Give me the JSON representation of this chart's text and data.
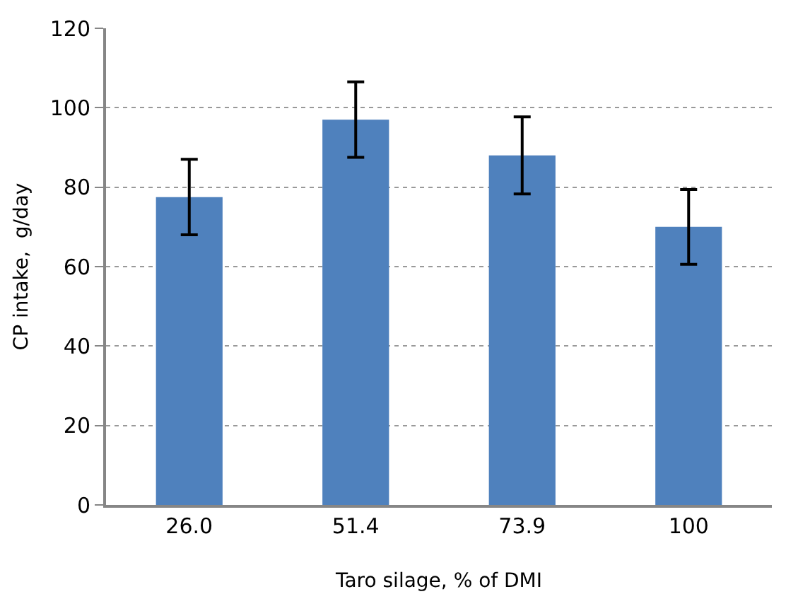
{
  "chart_data": {
    "type": "bar",
    "xlabel": "Taro silage, % of DMI",
    "ylabel": "CP intake,  g/day",
    "categories": [
      "26.0",
      "51.4",
      "73.9",
      "100"
    ],
    "series": [
      {
        "color": "#4f81bd",
        "values": [
          77.5,
          97,
          88,
          70
        ],
        "errors": [
          9.5,
          9.5,
          9.7,
          9.4
        ]
      }
    ],
    "ylim": [
      0,
      120
    ],
    "yticks": [
      0,
      20,
      40,
      60,
      80,
      100,
      120
    ],
    "grid": "y",
    "legend": false
  }
}
